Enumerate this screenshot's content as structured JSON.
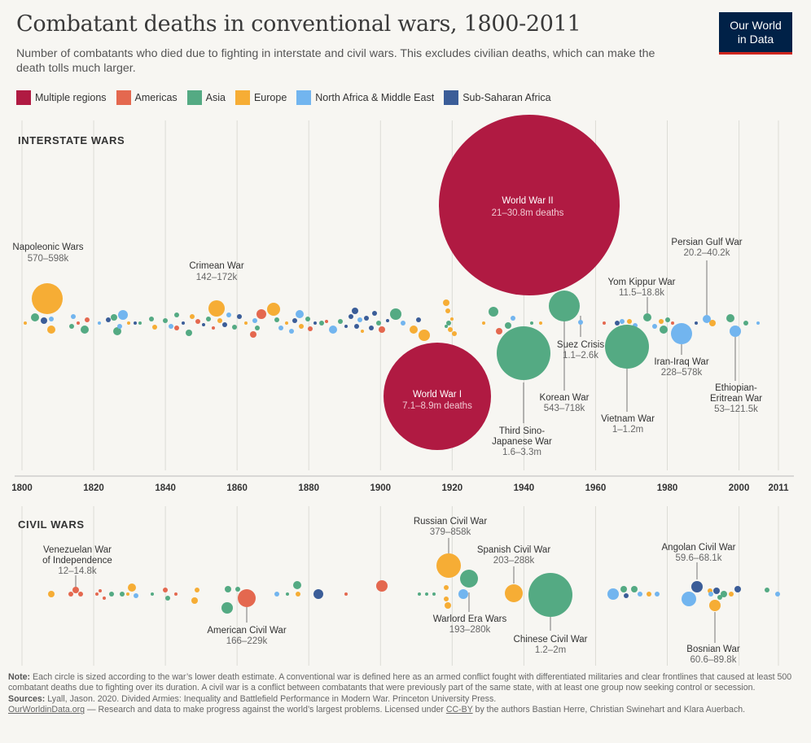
{
  "header": {
    "title": "Combatant deaths in conventional wars, 1800-2011",
    "subtitle": "Number of combatants who died due to fighting in interstate and civil wars. This excludes civilian deaths, which can make the death tolls much larger.",
    "logo_line1": "Our World",
    "logo_line2": "in Data"
  },
  "colors": {
    "Multiple regions": "#b01a42",
    "Americas": "#e4684f",
    "Asia": "#54aa83",
    "Europe": "#f6ad35",
    "North Africa & Middle East": "#72b5ef",
    "Sub-Saharan Africa": "#3b5d98"
  },
  "legend": [
    "Multiple regions",
    "Americas",
    "Asia",
    "Europe",
    "North Africa & Middle East",
    "Sub-Saharan Africa"
  ],
  "chart_data": {
    "type": "scatter",
    "x_ticks": [
      1800,
      1820,
      1840,
      1860,
      1880,
      1900,
      1920,
      1940,
      1960,
      1980,
      2000,
      2011
    ],
    "xlim": [
      1800,
      2011
    ],
    "size_encoding": "circle area proportional to lower death estimate",
    "panels": [
      {
        "name": "INTERSTATE WARS",
        "labeled_wars": [
          {
            "name": "World War II",
            "year": 1942,
            "low": 21000000,
            "range": "21–30.8m deaths",
            "region": "Multiple regions"
          },
          {
            "name": "World War I",
            "year": 1916,
            "low": 7100000,
            "range": "7.1–8.9m deaths",
            "region": "Multiple regions"
          },
          {
            "name": "Napoleonic Wars",
            "year": 1807,
            "low": 570000,
            "range": "570–598k",
            "region": "Europe"
          },
          {
            "name": "Crimean War",
            "year": 1855,
            "low": 142000,
            "range": "142–172k",
            "region": "Europe"
          },
          {
            "name": "Third Sino-Japanese War",
            "year": 1941,
            "low": 1600000,
            "range": "1.6–3.3m",
            "region": "Asia"
          },
          {
            "name": "Korean War",
            "year": 1952,
            "low": 543000,
            "range": "543–718k",
            "region": "Asia"
          },
          {
            "name": "Suez Crisis",
            "year": 1956,
            "low": 1100,
            "range": "1.1–2.6k",
            "region": "North Africa & Middle East"
          },
          {
            "name": "Vietnam War",
            "year": 1969,
            "low": 1000000,
            "range": "1–1.2m",
            "region": "Asia"
          },
          {
            "name": "Yom Kippur War",
            "year": 1973,
            "low": 11500,
            "range": "11.5–18.8k",
            "region": "North Africa & Middle East"
          },
          {
            "name": "Iran-Iraq War",
            "year": 1984,
            "low": 228000,
            "range": "228–578k",
            "region": "North Africa & Middle East"
          },
          {
            "name": "Persian Gulf War",
            "year": 1991,
            "low": 20200,
            "range": "20.2–40.2k",
            "region": "North Africa & Middle East"
          },
          {
            "name": "Ethiopian-Eritrean War",
            "year": 1999,
            "low": 53000,
            "range": "53–121.5k",
            "region": "North Africa & Middle East"
          }
        ]
      },
      {
        "name": "CIVIL WARS",
        "labeled_wars": [
          {
            "name": "Venezuelan War of Independence",
            "year": 1815,
            "low": 12000,
            "range": "12–14.8k",
            "region": "Americas"
          },
          {
            "name": "American Civil War",
            "year": 1863,
            "low": 166000,
            "range": "166–229k",
            "region": "Americas"
          },
          {
            "name": "Russian Civil War",
            "year": 1920,
            "low": 379000,
            "range": "379–858k",
            "region": "Europe"
          },
          {
            "name": "Warlord Era Wars",
            "year": 1923,
            "low": 193000,
            "range": "193–280k",
            "region": "Asia"
          },
          {
            "name": "Spanish Civil War",
            "year": 1937,
            "low": 203000,
            "range": "203–288k",
            "region": "Europe"
          },
          {
            "name": "Chinese Civil War",
            "year": 1948,
            "low": 1200000,
            "range": "1.2–2m",
            "region": "Asia"
          },
          {
            "name": "Angolan Civil War",
            "year": 1990,
            "low": 59600,
            "range": "59.6–68.1k",
            "region": "Sub-Saharan Africa"
          },
          {
            "name": "Bosnian War",
            "year": 1992,
            "low": 60600,
            "range": "60.6–89.8k",
            "region": "Europe"
          }
        ]
      }
    ]
  },
  "labels": {
    "ww2_name": "World War II",
    "ww2_range": "21–30.8m deaths",
    "ww1_name": "World War I",
    "ww1_range": "7.1–8.9m deaths",
    "napoleonic_name": "Napoleonic Wars",
    "napoleonic_range": "570–598k",
    "crimean_name": "Crimean War",
    "crimean_range": "142–172k",
    "sino_l1": "Third Sino-",
    "sino_l2": "Japanese War",
    "sino_range": "1.6–3.3m",
    "korean_name": "Korean War",
    "korean_range": "543–718k",
    "suez_name": "Suez Crisis",
    "suez_range": "1.1–2.6k",
    "vietnam_name": "Vietnam War",
    "vietnam_range": "1–1.2m",
    "yom_name": "Yom Kippur War",
    "yom_range": "11.5–18.8k",
    "iraniraq_name": "Iran-Iraq War",
    "iraniraq_range": "228–578k",
    "gulf_name": "Persian Gulf War",
    "gulf_range": "20.2–40.2k",
    "eth_l1": "Ethiopian-",
    "eth_l2": "Eritrean War",
    "eth_range": "53–121.5k",
    "ven_l1": "Venezuelan War",
    "ven_l2": "of Independence",
    "ven_range": "12–14.8k",
    "acw_name": "American Civil War",
    "acw_range": "166–229k",
    "rcw_name": "Russian Civil War",
    "rcw_range": "379–858k",
    "warlord_name": "Warlord Era Wars",
    "warlord_range": "193–280k",
    "scw_name": "Spanish Civil War",
    "scw_range": "203–288k",
    "ccw_name": "Chinese Civil War",
    "ccw_range": "1.2–2m",
    "angola_name": "Angolan Civil War",
    "angola_range": "59.6–68.1k",
    "bosnian_name": "Bosnian War",
    "bosnian_range": "60.6–89.8k"
  },
  "footer": {
    "note_label": "Note:",
    "note_text": " Each circle is sized according to the war’s lower death estimate. A conventional war is defined here as an armed conflict fought with differentiated militaries and clear frontlines that caused at least 500 combatant deaths due to fighting over its duration. A civil war is a conflict between combatants that were previously part of the same state, with at least one group now seeking control or secession.",
    "sources_label": "Sources:",
    "sources_text": " Lyall, Jason. 2020. Divided Armies: Inequality and Battlefield Performance in Modern War. Princeton University Press.",
    "site": "OurWorldinData.org",
    "credit_a": " — Research and data to make progress against the world’s largest problems.  Licensed under ",
    "license": "CC-BY",
    "credit_b": " by the authors Bastian Herre, Christian Swinehart and Klara Auerbach."
  }
}
